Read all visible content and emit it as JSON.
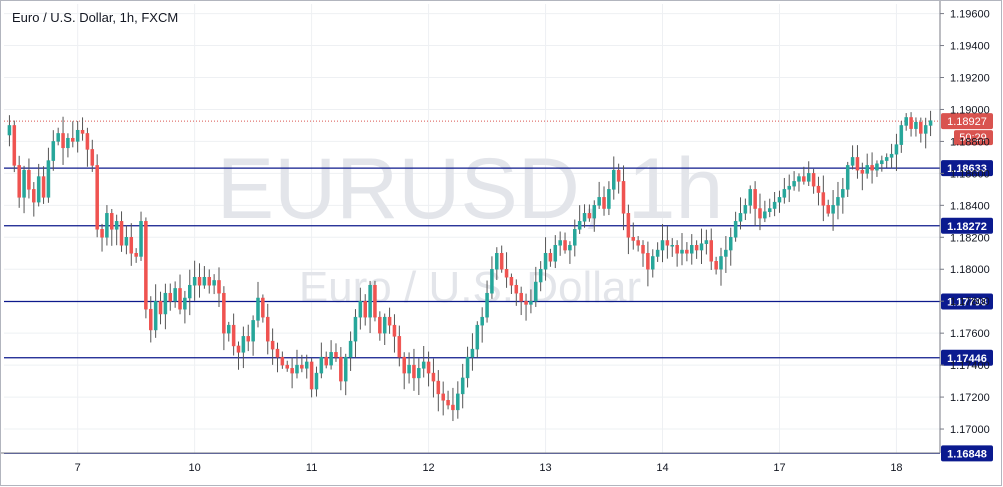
{
  "chart_data": {
    "type": "candlestick",
    "title": "Euro / U.S. Dollar, 1h, FXCM",
    "watermark": {
      "main": "EURUSD, 1h",
      "sub": "Euro / U.S. Dollar"
    },
    "ylim": [
      1.1685,
      1.1966
    ],
    "y_ticks": [
      1.196,
      1.194,
      1.192,
      1.19,
      1.188,
      1.186,
      1.184,
      1.182,
      1.18,
      1.178,
      1.176,
      1.174,
      1.172,
      1.17
    ],
    "y_tick_labels": [
      "1.19600",
      "1.19400",
      "1.19200",
      "1.19000",
      "1.18800",
      "1.18600",
      "1.18400",
      "1.18200",
      "1.18000",
      "1.17800",
      "1.17600",
      "1.17400",
      "1.17200",
      "1.17000"
    ],
    "x_labels": [
      {
        "label": "7",
        "bar": 14
      },
      {
        "label": "10",
        "bar": 38
      },
      {
        "label": "11",
        "bar": 62
      },
      {
        "label": "12",
        "bar": 86
      },
      {
        "label": "13",
        "bar": 110
      },
      {
        "label": "14",
        "bar": 134
      },
      {
        "label": "17",
        "bar": 158
      },
      {
        "label": "18",
        "bar": 182
      }
    ],
    "horizontal_levels": [
      {
        "value": 1.18633,
        "label": "1.18633"
      },
      {
        "value": 1.18272,
        "label": "1.18272"
      },
      {
        "value": 1.17798,
        "label": "1.17798"
      },
      {
        "value": 1.17446,
        "label": "1.17446"
      },
      {
        "value": 1.16848,
        "label": "1.16848"
      }
    ],
    "current_price": {
      "value": 1.18927,
      "label": "1.18927",
      "countdown": "50:29"
    },
    "colors": {
      "up": "#26a69a",
      "down": "#ef5350",
      "wick": "#555555",
      "level": "#0d1a8c",
      "price": "#d9534f"
    },
    "closes": [
      1.189,
      1.1865,
      1.1845,
      1.1862,
      1.185,
      1.1842,
      1.1858,
      1.1845,
      1.1868,
      1.188,
      1.1885,
      1.1876,
      1.1882,
      1.188,
      1.1887,
      1.1885,
      1.1875,
      1.1865,
      1.1825,
      1.182,
      1.1835,
      1.1825,
      1.183,
      1.1815,
      1.182,
      1.181,
      1.1808,
      1.183,
      1.1775,
      1.1762,
      1.178,
      1.1772,
      1.1785,
      1.178,
      1.1788,
      1.1775,
      1.1782,
      1.179,
      1.1795,
      1.179,
      1.1795,
      1.179,
      1.1793,
      1.1785,
      1.176,
      1.1765,
      1.1752,
      1.1748,
      1.1758,
      1.1755,
      1.1768,
      1.1782,
      1.177,
      1.1755,
      1.175,
      1.1745,
      1.174,
      1.1738,
      1.1735,
      1.174,
      1.1738,
      1.1742,
      1.1725,
      1.1735,
      1.1745,
      1.174,
      1.1748,
      1.1745,
      1.173,
      1.1745,
      1.1755,
      1.177,
      1.178,
      1.177,
      1.179,
      1.177,
      1.176,
      1.177,
      1.1765,
      1.1758,
      1.1745,
      1.1735,
      1.174,
      1.1732,
      1.1738,
      1.1742,
      1.1735,
      1.173,
      1.1722,
      1.1718,
      1.1715,
      1.1712,
      1.1722,
      1.1732,
      1.1745,
      1.175,
      1.1765,
      1.177,
      1.1785,
      1.18,
      1.181,
      1.18,
      1.1795,
      1.179,
      1.1785,
      1.178,
      1.1778,
      1.178,
      1.1792,
      1.18,
      1.181,
      1.1805,
      1.1815,
      1.1818,
      1.1812,
      1.1815,
      1.1825,
      1.183,
      1.1835,
      1.1832,
      1.184,
      1.1845,
      1.1838,
      1.185,
      1.1862,
      1.1855,
      1.1835,
      1.182,
      1.1818,
      1.1815,
      1.181,
      1.18,
      1.1808,
      1.1812,
      1.1818,
      1.1815,
      1.1815,
      1.181,
      1.1812,
      1.181,
      1.1815,
      1.1812,
      1.1816,
      1.1818,
      1.1805,
      1.18,
      1.1808,
      1.1812,
      1.182,
      1.183,
      1.1835,
      1.184,
      1.185,
      1.1838,
      1.1832,
      1.1836,
      1.1838,
      1.1842,
      1.1845,
      1.185,
      1.1852,
      1.1855,
      1.1858,
      1.1855,
      1.186,
      1.1852,
      1.1848,
      1.184,
      1.1835,
      1.184,
      1.1845,
      1.185,
      1.1865,
      1.187,
      1.1862,
      1.186,
      1.1865,
      1.1862,
      1.1866,
      1.1868,
      1.187,
      1.1872,
      1.1878,
      1.189,
      1.1895,
      1.1888,
      1.1892,
      1.1885,
      1.189,
      1.1893
    ]
  }
}
